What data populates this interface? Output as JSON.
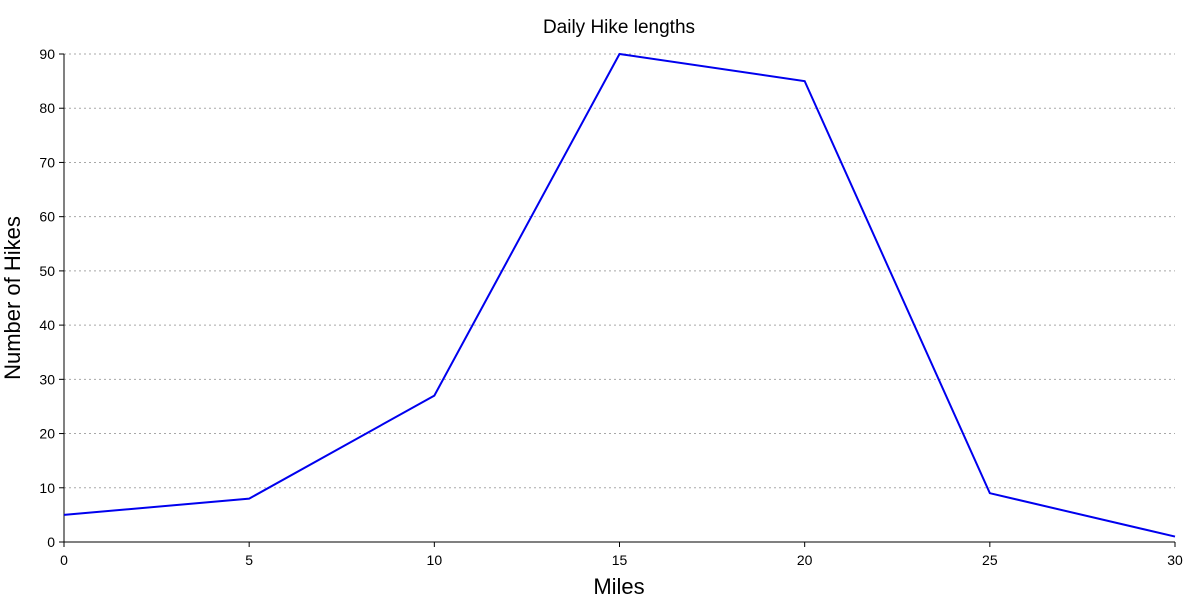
{
  "chart_data": {
    "type": "line",
    "title": "Daily Hike lengths",
    "xlabel": "Miles",
    "ylabel": "Number of Hikes",
    "xlim": [
      0,
      30
    ],
    "ylim": [
      0,
      90
    ],
    "xticks": [
      0,
      5,
      10,
      15,
      20,
      25,
      30
    ],
    "yticks": [
      0,
      10,
      20,
      30,
      40,
      50,
      60,
      70,
      80,
      90
    ],
    "grid": "horizontal dotted",
    "legend": "none",
    "series": [
      {
        "color": "#0000ee",
        "x": [
          0,
          5,
          10,
          15,
          20,
          25,
          30
        ],
        "y": [
          5,
          8,
          27,
          90,
          85,
          9,
          1
        ]
      }
    ]
  }
}
